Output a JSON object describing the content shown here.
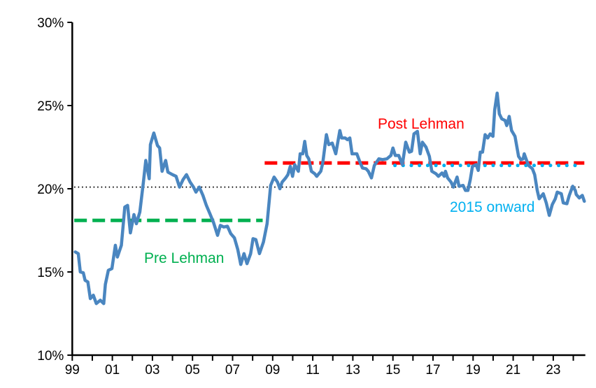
{
  "chart_data": {
    "type": "line",
    "title": "",
    "xlabel": "",
    "ylabel": "",
    "xlim": [
      1999,
      2024.6
    ],
    "ylim": [
      10,
      30
    ],
    "y_ticks": [
      10,
      15,
      20,
      25,
      30
    ],
    "y_tick_labels": [
      "10%",
      "15%",
      "20%",
      "25%",
      "30%"
    ],
    "x_ticks": [
      1999,
      2001,
      2003,
      2005,
      2007,
      2009,
      2011,
      2013,
      2015,
      2017,
      2019,
      2021,
      2023
    ],
    "x_tick_labels": [
      "99",
      "01",
      "03",
      "05",
      "07",
      "09",
      "11",
      "13",
      "15",
      "17",
      "19",
      "21",
      "23"
    ],
    "grid": false,
    "colors": {
      "series": "#4a86c0",
      "pre": "#00b050",
      "post": "#ff0000",
      "since2015": "#00b0f0",
      "average": "#000000"
    },
    "series": [
      {
        "x": [
          1999.15,
          1999.3,
          1999.4,
          1999.55,
          1999.64,
          1999.78,
          1999.9,
          2000.05,
          2000.2,
          2000.4,
          2000.57,
          2000.65,
          2000.8,
          2000.98,
          2001.15,
          2001.25,
          2001.45,
          2001.62,
          2001.76,
          2001.9,
          2002.08,
          2002.2,
          2002.37,
          2002.55,
          2002.67,
          2002.84,
          2002.9,
          2003.07,
          2003.25,
          2003.36,
          2003.48,
          2003.66,
          2003.77,
          2004.0,
          2004.18,
          2004.35,
          2004.53,
          2004.7,
          2004.88,
          2005.05,
          2005.17,
          2005.34,
          2005.52,
          2005.69,
          2005.87,
          2006.04,
          2006.25,
          2006.39,
          2006.56,
          2006.74,
          2006.91,
          2007.09,
          2007.26,
          2007.41,
          2007.57,
          2007.72,
          2007.9,
          2008.02,
          2008.16,
          2008.34,
          2008.54,
          2008.72,
          2008.9,
          2009.07,
          2009.24,
          2009.36,
          2009.47,
          2009.65,
          2009.76,
          2009.88,
          2009.99,
          2010.1,
          2010.28,
          2010.37,
          2010.5,
          2010.6,
          2010.7,
          2010.8,
          2010.93,
          2011.1,
          2011.2,
          2011.4,
          2011.5,
          2011.68,
          2011.8,
          2011.97,
          2012.15,
          2012.35,
          2012.44,
          2012.62,
          2012.73,
          2012.85,
          2012.96,
          2013.2,
          2013.37,
          2013.48,
          2013.66,
          2013.77,
          2013.93,
          2014.07,
          2014.3,
          2014.48,
          2014.7,
          2014.9,
          2015.0,
          2015.12,
          2015.29,
          2015.47,
          2015.64,
          2015.82,
          2015.93,
          2016.05,
          2016.22,
          2016.36,
          2016.47,
          2016.65,
          2016.82,
          2016.94,
          2017.15,
          2017.27,
          2017.45,
          2017.56,
          2017.62,
          2017.73,
          2017.9,
          2018.02,
          2018.2,
          2018.3,
          2018.5,
          2018.62,
          2018.74,
          2018.86,
          2018.97,
          2019.15,
          2019.26,
          2019.36,
          2019.47,
          2019.6,
          2019.73,
          2019.85,
          2019.99,
          2020.08,
          2020.2,
          2020.31,
          2020.43,
          2020.6,
          2020.68,
          2020.8,
          2020.92,
          2021.09,
          2021.27,
          2021.38,
          2021.5,
          2021.55,
          2021.67,
          2021.77,
          2021.96,
          2022.07,
          2022.2,
          2022.3,
          2022.5,
          2022.65,
          2022.8,
          2022.95,
          2023.1,
          2023.2,
          2023.4,
          2023.5,
          2023.68,
          2023.8,
          2023.97,
          2024.1,
          2024.15,
          2024.3,
          2024.45,
          2024.55
        ],
        "values": [
          16.2,
          16.1,
          15.0,
          14.95,
          14.5,
          14.4,
          13.4,
          13.6,
          13.1,
          13.3,
          13.1,
          14.25,
          15.1,
          15.2,
          16.6,
          15.9,
          16.6,
          18.9,
          19.0,
          17.35,
          18.45,
          17.9,
          18.6,
          20.4,
          21.7,
          20.6,
          22.65,
          23.35,
          22.6,
          22.45,
          21.05,
          21.7,
          21.0,
          20.85,
          20.75,
          20.1,
          20.55,
          20.85,
          20.4,
          20.1,
          19.8,
          20.1,
          19.6,
          19.0,
          18.5,
          18.0,
          17.2,
          17.8,
          17.7,
          17.75,
          17.3,
          17.05,
          16.35,
          15.45,
          16.1,
          15.5,
          16.1,
          17.0,
          16.95,
          16.1,
          16.8,
          17.9,
          20.2,
          20.7,
          20.4,
          20.0,
          20.4,
          20.65,
          20.85,
          21.35,
          20.75,
          21.45,
          21.05,
          22.1,
          22.1,
          22.85,
          22.0,
          21.8,
          21.05,
          20.9,
          20.75,
          21.05,
          21.55,
          23.25,
          22.65,
          22.75,
          22.1,
          23.5,
          23.05,
          23.05,
          22.95,
          23.05,
          22.1,
          22.1,
          21.55,
          21.25,
          21.2,
          21.05,
          20.65,
          21.4,
          21.8,
          21.75,
          21.8,
          22.0,
          22.45,
          22.0,
          22.0,
          21.45,
          22.8,
          22.2,
          22.25,
          23.3,
          23.45,
          22.1,
          22.8,
          22.5,
          21.95,
          21.05,
          20.9,
          20.75,
          20.95,
          20.75,
          21.05,
          20.65,
          20.4,
          20.1,
          20.7,
          20.15,
          20.2,
          19.9,
          19.9,
          20.55,
          21.35,
          21.45,
          21.1,
          22.2,
          22.2,
          23.25,
          23.05,
          23.3,
          23.15,
          24.75,
          25.75,
          24.5,
          24.2,
          24.1,
          23.8,
          24.35,
          23.5,
          23.15,
          21.95,
          21.75,
          21.8,
          22.1,
          21.7,
          21.4,
          21.2,
          20.85,
          19.9,
          19.4,
          19.7,
          19.15,
          18.4,
          19.05,
          19.4,
          19.8,
          19.7,
          19.15,
          19.1,
          19.6,
          20.15,
          19.9,
          19.65,
          19.45,
          19.6,
          19.25
        ]
      }
    ],
    "reference_lines": [
      {
        "label": "Pre Lehman",
        "value": 18.1,
        "from": 1999.1,
        "to": 2008.5,
        "style": "dashed",
        "color": "#00b050"
      },
      {
        "label": "Post Lehman",
        "value": 21.55,
        "from": 2008.6,
        "to": 2024.55,
        "style": "dashed",
        "color": "#ff0000"
      },
      {
        "label": "2015 onward",
        "value": 21.4,
        "from": 2015.1,
        "to": 2024.1,
        "style": "dotted",
        "color": "#00b0f0"
      },
      {
        "label": "",
        "value": 20.1,
        "from": 1999.1,
        "to": 2024.4,
        "style": "dotted",
        "color": "#000000"
      }
    ]
  }
}
